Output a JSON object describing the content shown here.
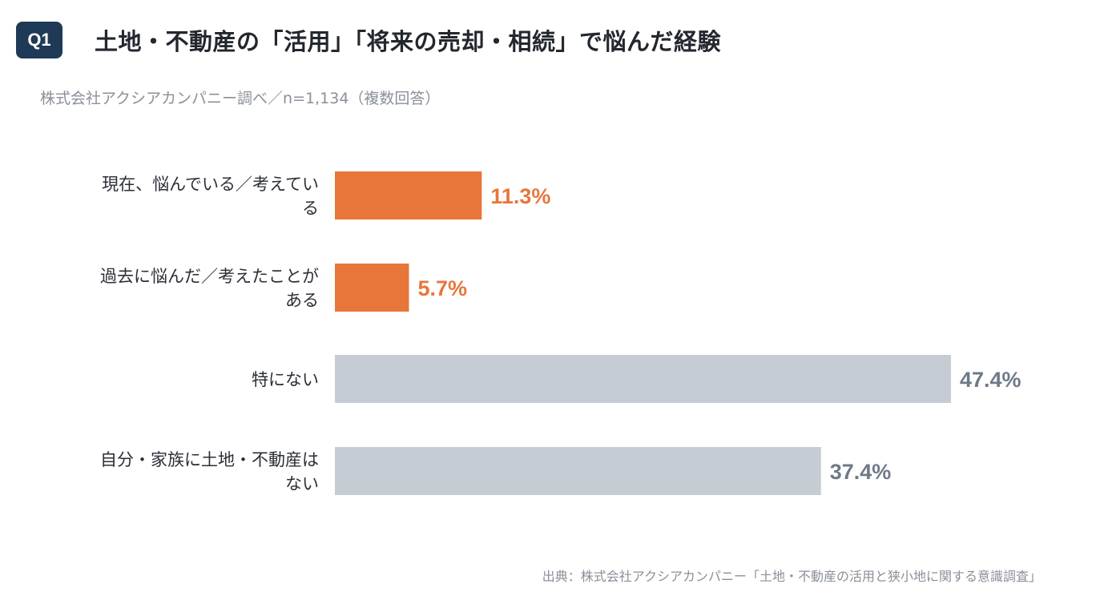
{
  "badge": "Q1",
  "title": "土地・不動産の「活用」「将来の売却・相続」で悩んだ経験",
  "subtitle": "株式会社アクシアカンパニー調べ／n=1,134（複数回答）",
  "source": "出典：株式会社アクシアカンパニー「土地・不動産の活用と狭小地に関する意識調査」",
  "colors": {
    "highlight": "#e8763b",
    "muted_bar": "#c5ccd3",
    "muted_label": "#6f7a88"
  },
  "chart_data": {
    "type": "bar",
    "orientation": "horizontal",
    "categories": [
      [
        "現在、悩んでいる／考えてい",
        "る"
      ],
      [
        "過去に悩んだ／考えたことが",
        "ある"
      ],
      [
        "特にない"
      ],
      [
        "自分・家族に土地・不動産は",
        "ない"
      ]
    ],
    "values": [
      11.3,
      5.7,
      47.4,
      37.4
    ],
    "value_labels": [
      "11.3%",
      "5.7%",
      "47.4%",
      "37.4%"
    ],
    "highlight": [
      true,
      true,
      false,
      false
    ],
    "unit": "%"
  }
}
